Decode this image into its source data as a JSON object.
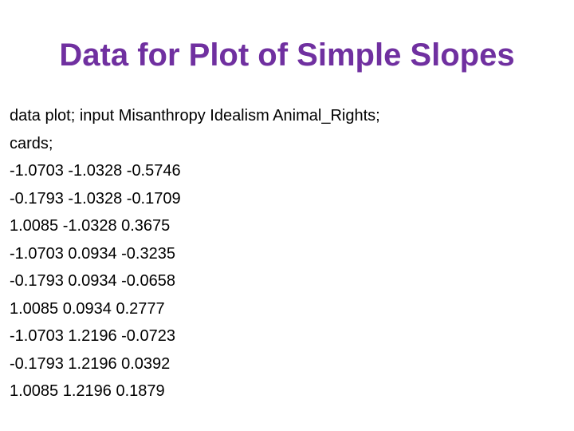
{
  "slide": {
    "title": "Data for Plot of Simple Slopes",
    "lines": [
      "data plot; input Misanthropy Idealism Animal_Rights;",
      "cards;",
      "-1.0703 -1.0328 -0.5746",
      "-0.1793 -1.0328 -0.1709",
      "1.0085 -1.0328 0.3675",
      "-1.0703 0.0934 -0.3235",
      "-0.1793 0.0934 -0.0658",
      "1.0085 0.0934 0.2777",
      "-1.0703 1.2196 -0.0723",
      "-0.1793 1.2196 0.0392",
      "1.0085 1.2196 0.1879"
    ]
  }
}
